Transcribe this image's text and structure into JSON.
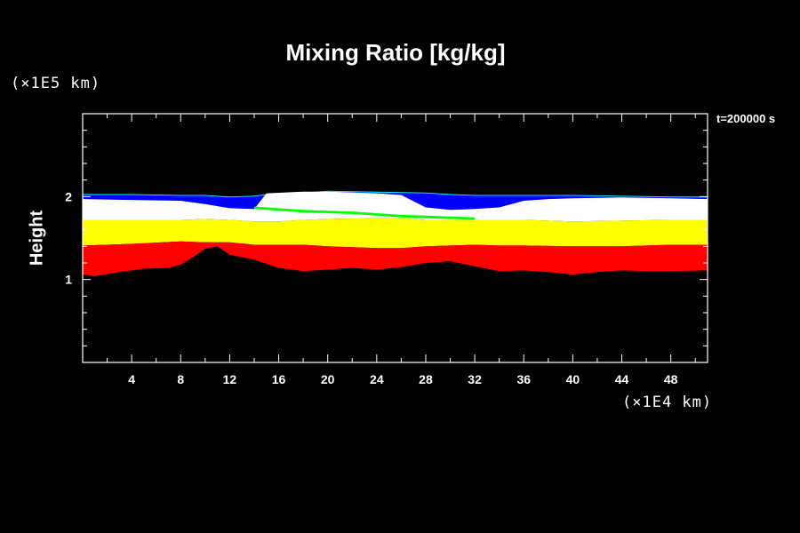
{
  "chart_data": {
    "type": "area",
    "title": "Mixing Ratio [kg/kg]",
    "xlabel": "",
    "ylabel": "Height",
    "x_unit_label": "(×1E4 km)",
    "y_unit_label": "(×1E5 km)",
    "time_label": "t=200000 s",
    "xlim": [
      0,
      51
    ],
    "ylim": [
      0,
      3
    ],
    "x_ticks": [
      4,
      8,
      12,
      16,
      20,
      24,
      28,
      32,
      36,
      40,
      44,
      48
    ],
    "y_ticks": [
      1,
      2
    ],
    "grid": false,
    "colors": {
      "background": "#000000",
      "cyan": "#00ffff",
      "blue": "#0000ff",
      "white": "#ffffff",
      "green": "#00ff00",
      "yellow": "#ffff00",
      "red": "#ff0000"
    },
    "layers": [
      {
        "color": "cyan",
        "top": [
          [
            0,
            2.03
          ],
          [
            4,
            2.03
          ],
          [
            8,
            2.02
          ],
          [
            10,
            2.02
          ],
          [
            12,
            2.0
          ],
          [
            14,
            2.01
          ],
          [
            15,
            2.03
          ],
          [
            18,
            2.05
          ],
          [
            20,
            2.07
          ],
          [
            24,
            2.06
          ],
          [
            28,
            2.05
          ],
          [
            30,
            2.03
          ],
          [
            32,
            2.02
          ],
          [
            34,
            2.02
          ],
          [
            36,
            2.02
          ],
          [
            40,
            2.02
          ],
          [
            44,
            2.01
          ],
          [
            48,
            2.0
          ],
          [
            51,
            2.0
          ]
        ],
        "bottom": [
          [
            0,
            1.98
          ],
          [
            51,
            1.98
          ]
        ]
      },
      {
        "color": "blue",
        "top": [
          [
            0,
            2.02
          ],
          [
            4,
            2.02
          ],
          [
            8,
            2.01
          ],
          [
            10,
            2.01
          ],
          [
            12,
            1.99
          ],
          [
            14,
            2.0
          ],
          [
            15,
            2.02
          ],
          [
            18,
            2.04
          ],
          [
            20,
            2.06
          ],
          [
            24,
            2.05
          ],
          [
            28,
            2.04
          ],
          [
            30,
            2.02
          ],
          [
            32,
            2.01
          ],
          [
            34,
            2.01
          ],
          [
            36,
            2.01
          ],
          [
            40,
            2.01
          ],
          [
            44,
            2.0
          ],
          [
            48,
            1.99
          ],
          [
            51,
            1.99
          ]
        ],
        "bottom": [
          [
            0,
            1.8
          ],
          [
            51,
            1.8
          ]
        ]
      },
      {
        "color": "white",
        "top": [
          [
            0,
            1.97
          ],
          [
            4,
            1.96
          ],
          [
            8,
            1.95
          ],
          [
            10,
            1.91
          ],
          [
            12,
            1.86
          ],
          [
            14,
            1.85
          ],
          [
            15,
            2.04
          ],
          [
            18,
            2.06
          ],
          [
            20,
            2.06
          ],
          [
            24,
            2.04
          ],
          [
            26,
            2.02
          ],
          [
            28,
            1.87
          ],
          [
            30,
            1.84
          ],
          [
            32,
            1.85
          ],
          [
            34,
            1.87
          ],
          [
            36,
            1.95
          ],
          [
            38,
            1.97
          ],
          [
            40,
            1.98
          ],
          [
            44,
            1.99
          ],
          [
            48,
            1.98
          ],
          [
            51,
            1.97
          ]
        ],
        "bottom": [
          [
            0,
            1.72
          ],
          [
            4,
            1.72
          ],
          [
            8,
            1.72
          ],
          [
            10,
            1.73
          ],
          [
            12,
            1.72
          ],
          [
            14,
            1.7
          ],
          [
            16,
            1.7
          ],
          [
            18,
            1.72
          ],
          [
            20,
            1.73
          ],
          [
            24,
            1.74
          ],
          [
            26,
            1.74
          ],
          [
            28,
            1.72
          ],
          [
            30,
            1.72
          ],
          [
            32,
            1.72
          ],
          [
            36,
            1.72
          ],
          [
            40,
            1.7
          ],
          [
            44,
            1.71
          ],
          [
            48,
            1.72
          ],
          [
            51,
            1.72
          ]
        ]
      },
      {
        "color": "yellow",
        "top": [
          [
            0,
            1.72
          ],
          [
            4,
            1.72
          ],
          [
            8,
            1.72
          ],
          [
            10,
            1.73
          ],
          [
            12,
            1.72
          ],
          [
            14,
            1.7
          ],
          [
            16,
            1.7
          ],
          [
            18,
            1.72
          ],
          [
            20,
            1.73
          ],
          [
            24,
            1.74
          ],
          [
            26,
            1.74
          ],
          [
            28,
            1.72
          ],
          [
            30,
            1.72
          ],
          [
            32,
            1.72
          ],
          [
            36,
            1.72
          ],
          [
            40,
            1.7
          ],
          [
            44,
            1.71
          ],
          [
            48,
            1.72
          ],
          [
            51,
            1.72
          ]
        ],
        "bottom": [
          [
            0,
            1.41
          ],
          [
            4,
            1.43
          ],
          [
            8,
            1.46
          ],
          [
            10,
            1.45
          ],
          [
            12,
            1.45
          ],
          [
            14,
            1.42
          ],
          [
            16,
            1.42
          ],
          [
            18,
            1.42
          ],
          [
            20,
            1.4
          ],
          [
            22,
            1.39
          ],
          [
            24,
            1.38
          ],
          [
            26,
            1.38
          ],
          [
            28,
            1.4
          ],
          [
            30,
            1.41
          ],
          [
            32,
            1.42
          ],
          [
            34,
            1.41
          ],
          [
            36,
            1.41
          ],
          [
            40,
            1.4
          ],
          [
            44,
            1.4
          ],
          [
            48,
            1.42
          ],
          [
            51,
            1.42
          ]
        ]
      },
      {
        "color": "green",
        "top": [
          [
            14,
            1.88
          ],
          [
            16,
            1.86
          ],
          [
            18,
            1.84
          ],
          [
            20,
            1.83
          ],
          [
            22,
            1.82
          ],
          [
            24,
            1.8
          ],
          [
            26,
            1.78
          ],
          [
            28,
            1.77
          ],
          [
            30,
            1.76
          ],
          [
            32,
            1.75
          ]
        ],
        "bottom": [
          [
            14,
            1.85
          ],
          [
            16,
            1.83
          ],
          [
            18,
            1.81
          ],
          [
            20,
            1.8
          ],
          [
            22,
            1.79
          ],
          [
            24,
            1.77
          ],
          [
            26,
            1.75
          ],
          [
            28,
            1.74
          ],
          [
            30,
            1.73
          ],
          [
            32,
            1.72
          ]
        ]
      },
      {
        "color": "red",
        "top": [
          [
            0,
            1.41
          ],
          [
            4,
            1.43
          ],
          [
            8,
            1.46
          ],
          [
            10,
            1.45
          ],
          [
            12,
            1.45
          ],
          [
            14,
            1.42
          ],
          [
            16,
            1.42
          ],
          [
            18,
            1.42
          ],
          [
            20,
            1.4
          ],
          [
            22,
            1.39
          ],
          [
            24,
            1.38
          ],
          [
            26,
            1.38
          ],
          [
            28,
            1.4
          ],
          [
            30,
            1.41
          ],
          [
            32,
            1.42
          ],
          [
            34,
            1.41
          ],
          [
            36,
            1.41
          ],
          [
            40,
            1.4
          ],
          [
            44,
            1.4
          ],
          [
            48,
            1.42
          ],
          [
            51,
            1.42
          ]
        ],
        "bottom": [
          [
            0,
            1.06
          ],
          [
            1,
            1.04
          ],
          [
            3,
            1.09
          ],
          [
            5,
            1.13
          ],
          [
            7,
            1.14
          ],
          [
            8,
            1.18
          ],
          [
            9,
            1.27
          ],
          [
            10,
            1.37
          ],
          [
            11,
            1.4
          ],
          [
            12,
            1.3
          ],
          [
            14,
            1.24
          ],
          [
            16,
            1.14
          ],
          [
            18,
            1.1
          ],
          [
            20,
            1.12
          ],
          [
            22,
            1.14
          ],
          [
            24,
            1.12
          ],
          [
            26,
            1.15
          ],
          [
            28,
            1.2
          ],
          [
            30,
            1.22
          ],
          [
            32,
            1.16
          ],
          [
            34,
            1.1
          ],
          [
            36,
            1.11
          ],
          [
            38,
            1.09
          ],
          [
            40,
            1.06
          ],
          [
            42,
            1.09
          ],
          [
            44,
            1.11
          ],
          [
            46,
            1.1
          ],
          [
            48,
            1.1
          ],
          [
            51,
            1.11
          ]
        ]
      }
    ]
  }
}
